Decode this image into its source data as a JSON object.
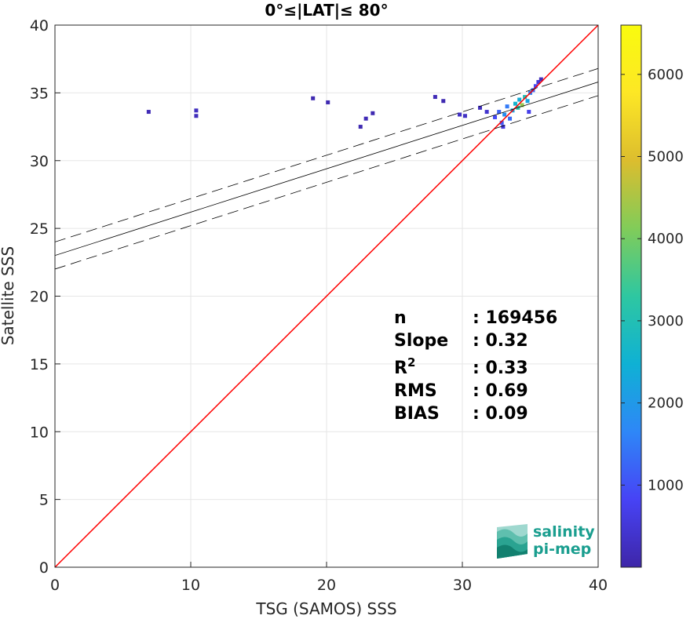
{
  "chart_data": {
    "type": "heatmap",
    "title": "0°≤|LAT|≤ 80°",
    "xlabel": "TSG (SAMOS) SSS",
    "ylabel": "Satellite SSS",
    "xlim": [
      0,
      40
    ],
    "ylim": [
      0,
      40
    ],
    "x_ticks": [
      0,
      10,
      20,
      30,
      40
    ],
    "y_ticks": [
      0,
      5,
      10,
      15,
      20,
      25,
      30,
      35,
      40
    ],
    "grid": true,
    "reference_line": {
      "name": "1:1",
      "slope": 1,
      "intercept": 0,
      "color": "#ff0000"
    },
    "fit_line": {
      "slope": 0.32,
      "intercept": 23.0,
      "color": "#000000"
    },
    "fit_bounds_offset": 1.0,
    "colorbar": {
      "min": 0,
      "max": 6600,
      "ticks": [
        1000,
        2000,
        3000,
        4000,
        5000,
        6000
      ],
      "colormap": [
        "#3e26a8",
        "#4743f5",
        "#2e87f7",
        "#0fb1d4",
        "#2ec7a1",
        "#81cc59",
        "#dcbd2e",
        "#fde725",
        "#f9fb0e"
      ]
    },
    "density_points": [
      {
        "x": 6.9,
        "y": 33.6,
        "count": 150
      },
      {
        "x": 10.4,
        "y": 33.7,
        "count": 250
      },
      {
        "x": 10.4,
        "y": 33.3,
        "count": 200
      },
      {
        "x": 19.0,
        "y": 34.6,
        "count": 100
      },
      {
        "x": 20.1,
        "y": 34.3,
        "count": 100
      },
      {
        "x": 22.5,
        "y": 32.5,
        "count": 100
      },
      {
        "x": 22.9,
        "y": 33.1,
        "count": 150
      },
      {
        "x": 23.4,
        "y": 33.5,
        "count": 100
      },
      {
        "x": 28.0,
        "y": 34.7,
        "count": 150
      },
      {
        "x": 28.6,
        "y": 34.4,
        "count": 100
      },
      {
        "x": 29.8,
        "y": 33.4,
        "count": 300
      },
      {
        "x": 30.2,
        "y": 33.3,
        "count": 300
      },
      {
        "x": 31.3,
        "y": 33.9,
        "count": 250
      },
      {
        "x": 31.8,
        "y": 33.6,
        "count": 400
      },
      {
        "x": 32.4,
        "y": 33.2,
        "count": 900
      },
      {
        "x": 32.7,
        "y": 33.6,
        "count": 1200
      },
      {
        "x": 32.9,
        "y": 32.8,
        "count": 1100
      },
      {
        "x": 33.1,
        "y": 33.4,
        "count": 1800
      },
      {
        "x": 33.3,
        "y": 34.0,
        "count": 1500
      },
      {
        "x": 33.5,
        "y": 33.1,
        "count": 1300
      },
      {
        "x": 33.7,
        "y": 33.7,
        "count": 2200
      },
      {
        "x": 33.9,
        "y": 34.2,
        "count": 2600
      },
      {
        "x": 34.1,
        "y": 33.9,
        "count": 3200
      },
      {
        "x": 34.2,
        "y": 34.5,
        "count": 2400
      },
      {
        "x": 34.4,
        "y": 34.1,
        "count": 4300
      },
      {
        "x": 34.6,
        "y": 34.7,
        "count": 3000
      },
      {
        "x": 34.8,
        "y": 34.4,
        "count": 2200
      },
      {
        "x": 35.0,
        "y": 35.0,
        "count": 1600
      },
      {
        "x": 35.2,
        "y": 35.2,
        "count": 1200
      },
      {
        "x": 35.4,
        "y": 35.5,
        "count": 900
      },
      {
        "x": 35.6,
        "y": 35.8,
        "count": 500
      },
      {
        "x": 35.8,
        "y": 36.0,
        "count": 200
      },
      {
        "x": 33.0,
        "y": 32.5,
        "count": 600
      },
      {
        "x": 34.9,
        "y": 33.6,
        "count": 700
      }
    ],
    "stats": [
      {
        "label": "n",
        "value": ": 169456"
      },
      {
        "label": "Slope",
        "value": ": 0.32"
      },
      {
        "label": "R",
        "sup": "2",
        "value": ": 0.33"
      },
      {
        "label": "RMS",
        "value": ": 0.69"
      },
      {
        "label": "BIAS",
        "value": ": 0.09"
      }
    ]
  },
  "logo": {
    "line1": "salinity",
    "line2": "pi-mep",
    "icon": "wave-stack-icon"
  }
}
